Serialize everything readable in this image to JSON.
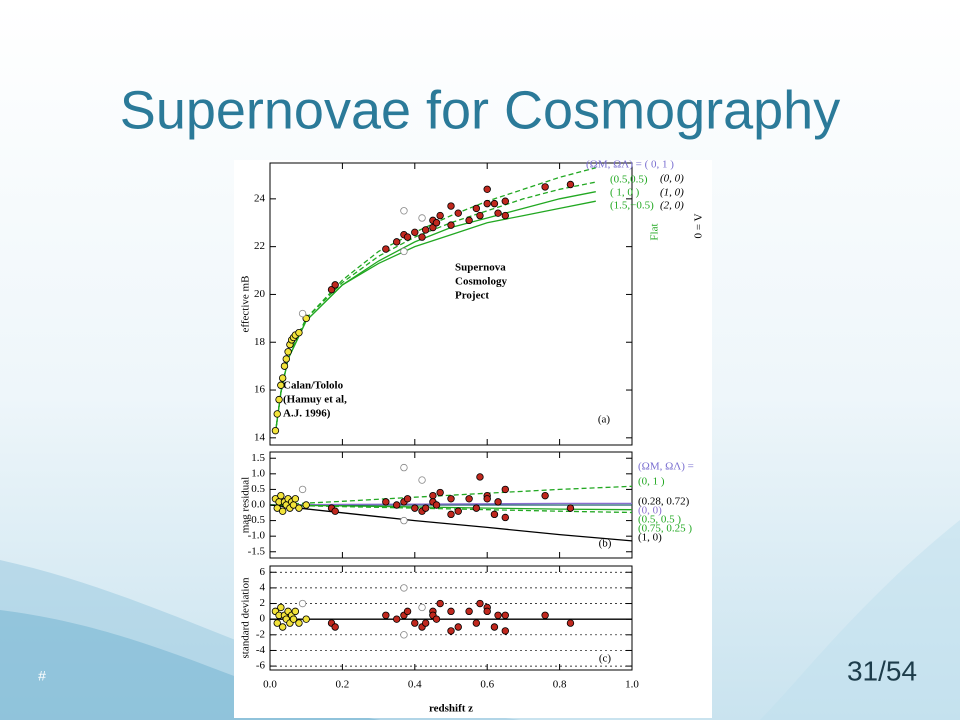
{
  "slide": {
    "title": "Supernovae for Cosmography",
    "footer_mark": "#",
    "page_number": "31/54"
  },
  "chart_data": [
    {
      "type": "scatter",
      "panel_label": "(a)",
      "ylabel": "effective mB",
      "xlim": [
        0,
        1
      ],
      "ylim": [
        13.7,
        25.5
      ],
      "yticks": [
        14,
        16,
        18,
        20,
        22,
        24
      ],
      "grid": false,
      "line_x": [
        0.015,
        0.03,
        0.05,
        0.1,
        0.2,
        0.3,
        0.4,
        0.5,
        0.6,
        0.7,
        0.8,
        0.9
      ],
      "lines": [
        {
          "label": "(ΩM, ΩΛ) = ( 0,   1 )",
          "color": "#22a822",
          "dashed": true,
          "values": [
            14.2,
            15.9,
            17.4,
            19.0,
            20.6,
            21.8,
            22.6,
            23.3,
            23.9,
            24.4,
            24.9,
            25.3
          ]
        },
        {
          "label": "(0.5,0.5)",
          "color": "#22a822",
          "dashed": true,
          "values": [
            14.2,
            15.9,
            17.4,
            19.0,
            20.5,
            21.6,
            22.4,
            23.0,
            23.5,
            24.0,
            24.4,
            24.7
          ]
        },
        {
          "label": "( 1,    0 )",
          "color": "#22a822",
          "dashed": false,
          "values": [
            14.2,
            15.9,
            17.3,
            18.9,
            20.4,
            21.4,
            22.2,
            22.8,
            23.2,
            23.6,
            24.0,
            24.3
          ]
        },
        {
          "label": "(1.5,−0.5)",
          "color": "#22a822",
          "dashed": false,
          "values": [
            14.2,
            15.9,
            17.3,
            18.9,
            20.4,
            21.3,
            22.0,
            22.5,
            23.0,
            23.3,
            23.6,
            23.9
          ]
        }
      ],
      "series": [
        {
          "color": "#f2e33a",
          "hollow": false,
          "x": [
            0.015,
            0.02,
            0.025,
            0.03,
            0.035,
            0.04,
            0.045,
            0.05,
            0.055,
            0.06,
            0.065,
            0.07,
            0.08,
            0.1
          ],
          "values": [
            14.3,
            15.0,
            15.6,
            16.2,
            16.5,
            17.0,
            17.3,
            17.6,
            17.9,
            18.1,
            18.2,
            18.3,
            18.4,
            19.0
          ]
        },
        {
          "color": "#c0281e",
          "hollow": false,
          "x": [
            0.17,
            0.18,
            0.32,
            0.35,
            0.37,
            0.38,
            0.4,
            0.42,
            0.43,
            0.45,
            0.45,
            0.46,
            0.47,
            0.5,
            0.5,
            0.52,
            0.55,
            0.57,
            0.58,
            0.6,
            0.6,
            0.62,
            0.63,
            0.65,
            0.65,
            0.76,
            0.83
          ],
          "values": [
            20.2,
            20.4,
            21.9,
            22.2,
            22.5,
            22.4,
            22.6,
            22.4,
            22.7,
            23.1,
            22.8,
            23.0,
            23.3,
            23.7,
            22.9,
            23.4,
            23.1,
            23.6,
            23.3,
            24.4,
            23.8,
            23.8,
            23.4,
            23.9,
            23.3,
            24.5,
            24.6
          ]
        },
        {
          "color": "#888888",
          "hollow": true,
          "x": [
            0.09,
            0.37,
            0.37,
            0.42
          ],
          "values": [
            19.2,
            23.5,
            21.8,
            23.2
          ]
        }
      ],
      "annotations": [
        "(0, 0)",
        "(1, 0)",
        "(2, 0)",
        "Flat",
        "Λ = 0",
        "Supernova",
        "Cosmology",
        "Project",
        "Calan/Tololo",
        "(Hamuy et al,",
        "A.J. 1996)"
      ]
    },
    {
      "type": "scatter",
      "panel_label": "(b)",
      "ylabel": "mag residual",
      "xlim": [
        0,
        1
      ],
      "ylim": [
        -1.7,
        1.7
      ],
      "yticks": [
        {
          "value": 1.5,
          "label": "1.5"
        },
        {
          "value": 1,
          "label": "1.0"
        },
        {
          "value": 0.5,
          "label": "0.5"
        },
        {
          "value": 0,
          "label": "0.0"
        },
        {
          "value": -0.5,
          "label": "-0.5"
        },
        {
          "value": -1,
          "label": "-1.0"
        },
        {
          "value": -1.5,
          "label": "-1.5"
        }
      ],
      "grid": false,
      "legend_title": "(ΩM, ΩΛ) =",
      "line_x": [
        0,
        0.2,
        0.4,
        0.6,
        0.8,
        1.0
      ],
      "lines": [
        {
          "label": "(0,       1 )",
          "color": "#22a822",
          "dashed": true,
          "values": [
            0,
            0.12,
            0.25,
            0.38,
            0.5,
            0.6
          ]
        },
        {
          "label": "(0.28,   0.72)",
          "color": "#1f5f6f",
          "dashed": false,
          "values": [
            0,
            0,
            0,
            0,
            0,
            0
          ]
        },
        {
          "label": "(0,       0)",
          "color": "#8a6fd0",
          "dashed": false,
          "values": [
            0,
            0.02,
            0.03,
            0.04,
            0.05,
            0.05
          ]
        },
        {
          "label": "(0.5,    0.5 )",
          "color": "#22a822",
          "dashed": false,
          "values": [
            0,
            -0.03,
            -0.06,
            -0.1,
            -0.13,
            -0.15
          ]
        },
        {
          "label": "(0.75,   0.25 )",
          "color": "#22a822",
          "dashed": true,
          "values": [
            0,
            -0.05,
            -0.1,
            -0.15,
            -0.2,
            -0.24
          ]
        },
        {
          "label": "(1,       0)",
          "color": "#000000",
          "dashed": false,
          "values": [
            0,
            -0.25,
            -0.5,
            -0.72,
            -0.95,
            -1.15
          ]
        }
      ],
      "series": [
        {
          "color": "#f2e33a",
          "hollow": false,
          "x": [
            0.015,
            0.02,
            0.025,
            0.03,
            0.035,
            0.04,
            0.045,
            0.05,
            0.055,
            0.06,
            0.065,
            0.07,
            0.08,
            0.1
          ],
          "values": [
            0.2,
            -0.1,
            0.1,
            0.3,
            -0.2,
            0.1,
            0,
            0.2,
            -0.1,
            0.1,
            0,
            0.2,
            -0.1,
            0
          ]
        },
        {
          "color": "#c0281e",
          "hollow": false,
          "x": [
            0.17,
            0.18,
            0.32,
            0.35,
            0.37,
            0.38,
            0.4,
            0.42,
            0.43,
            0.45,
            0.45,
            0.46,
            0.47,
            0.5,
            0.5,
            0.52,
            0.55,
            0.57,
            0.58,
            0.6,
            0.6,
            0.62,
            0.63,
            0.65,
            0.65,
            0.76,
            0.83
          ],
          "values": [
            -0.1,
            -0.2,
            0.1,
            0,
            0.1,
            0.2,
            -0.1,
            -0.2,
            -0.1,
            0.3,
            0.1,
            0,
            0.4,
            -0.3,
            0.2,
            -0.2,
            0.2,
            -0.1,
            0.9,
            0.3,
            0.2,
            -0.3,
            0.1,
            -0.4,
            0.5,
            0.3,
            -0.1
          ]
        },
        {
          "color": "#888888",
          "hollow": true,
          "x": [
            0.09,
            0.37,
            0.37,
            0.42
          ],
          "values": [
            0.5,
            1.2,
            -0.5,
            0.8
          ]
        }
      ]
    },
    {
      "type": "scatter",
      "panel_label": "(c)",
      "ylabel": "standard deviation",
      "xlabel": "redshift z",
      "xlim": [
        0,
        1
      ],
      "ylim": [
        -6.5,
        6.8
      ],
      "xticks": [
        {
          "value": 0,
          "label": "0.0"
        },
        0.2,
        0.4,
        0.6,
        0.8,
        {
          "value": 1,
          "label": "1.0"
        }
      ],
      "yticks": [
        -6,
        -4,
        -2,
        0,
        2,
        4,
        6
      ],
      "grid": true,
      "line_x": [
        0,
        1
      ],
      "lines": [
        {
          "color": "#000000",
          "dashed": false,
          "values": [
            0,
            0
          ]
        }
      ],
      "series": [
        {
          "color": "#f2e33a",
          "hollow": false,
          "x": [
            0.015,
            0.02,
            0.025,
            0.03,
            0.035,
            0.04,
            0.045,
            0.05,
            0.055,
            0.06,
            0.065,
            0.07,
            0.08,
            0.1
          ],
          "values": [
            1.0,
            -0.5,
            0.5,
            1.5,
            -1.0,
            0.5,
            0,
            1.0,
            -0.5,
            0.5,
            0,
            1.0,
            -0.5,
            0
          ]
        },
        {
          "color": "#c0281e",
          "hollow": false,
          "x": [
            0.17,
            0.18,
            0.32,
            0.35,
            0.37,
            0.38,
            0.4,
            0.42,
            0.43,
            0.45,
            0.45,
            0.46,
            0.47,
            0.5,
            0.5,
            0.52,
            0.55,
            0.57,
            0.58,
            0.6,
            0.6,
            0.62,
            0.63,
            0.65,
            0.65,
            0.76,
            0.83
          ],
          "values": [
            -0.5,
            -1.0,
            0.5,
            0,
            0.5,
            1.0,
            -0.5,
            -1.0,
            -0.5,
            1.0,
            0.5,
            0,
            2.0,
            -1.5,
            1.0,
            -1.0,
            1.0,
            -0.5,
            2.0,
            1.5,
            1.0,
            -1.0,
            0.5,
            -1.5,
            0.5,
            0.5,
            -0.5
          ]
        },
        {
          "color": "#888888",
          "hollow": true,
          "x": [
            0.09,
            0.37,
            0.37,
            0.42
          ],
          "values": [
            2.0,
            4.0,
            -2.0,
            1.5
          ]
        }
      ]
    }
  ]
}
